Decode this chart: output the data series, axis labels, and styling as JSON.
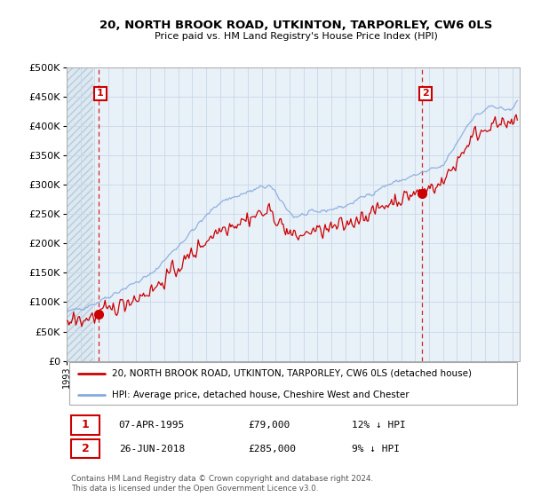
{
  "title": "20, NORTH BROOK ROAD, UTKINTON, TARPORLEY, CW6 0LS",
  "subtitle": "Price paid vs. HM Land Registry's House Price Index (HPI)",
  "ytick_values": [
    0,
    50000,
    100000,
    150000,
    200000,
    250000,
    300000,
    350000,
    400000,
    450000,
    500000
  ],
  "xlim": [
    1993.0,
    2025.5
  ],
  "ylim": [
    0,
    500000
  ],
  "legend_line1": "20, NORTH BROOK ROAD, UTKINTON, TARPORLEY, CW6 0LS (detached house)",
  "legend_line2": "HPI: Average price, detached house, Cheshire West and Chester",
  "sale1_date": "07-APR-1995",
  "sale1_price": 79000,
  "sale1_pct": "12% ↓ HPI",
  "sale2_date": "26-JUN-2018",
  "sale2_price": 285000,
  "sale2_pct": "9% ↓ HPI",
  "footer": "Contains HM Land Registry data © Crown copyright and database right 2024.\nThis data is licensed under the Open Government Licence v3.0.",
  "price_color": "#cc0000",
  "hpi_color": "#88aadd",
  "annotation_box_color": "#cc0000",
  "grid_color": "#c8d8e8",
  "bg_color": "#dce8f0",
  "plot_bg": "#e8f0f8"
}
